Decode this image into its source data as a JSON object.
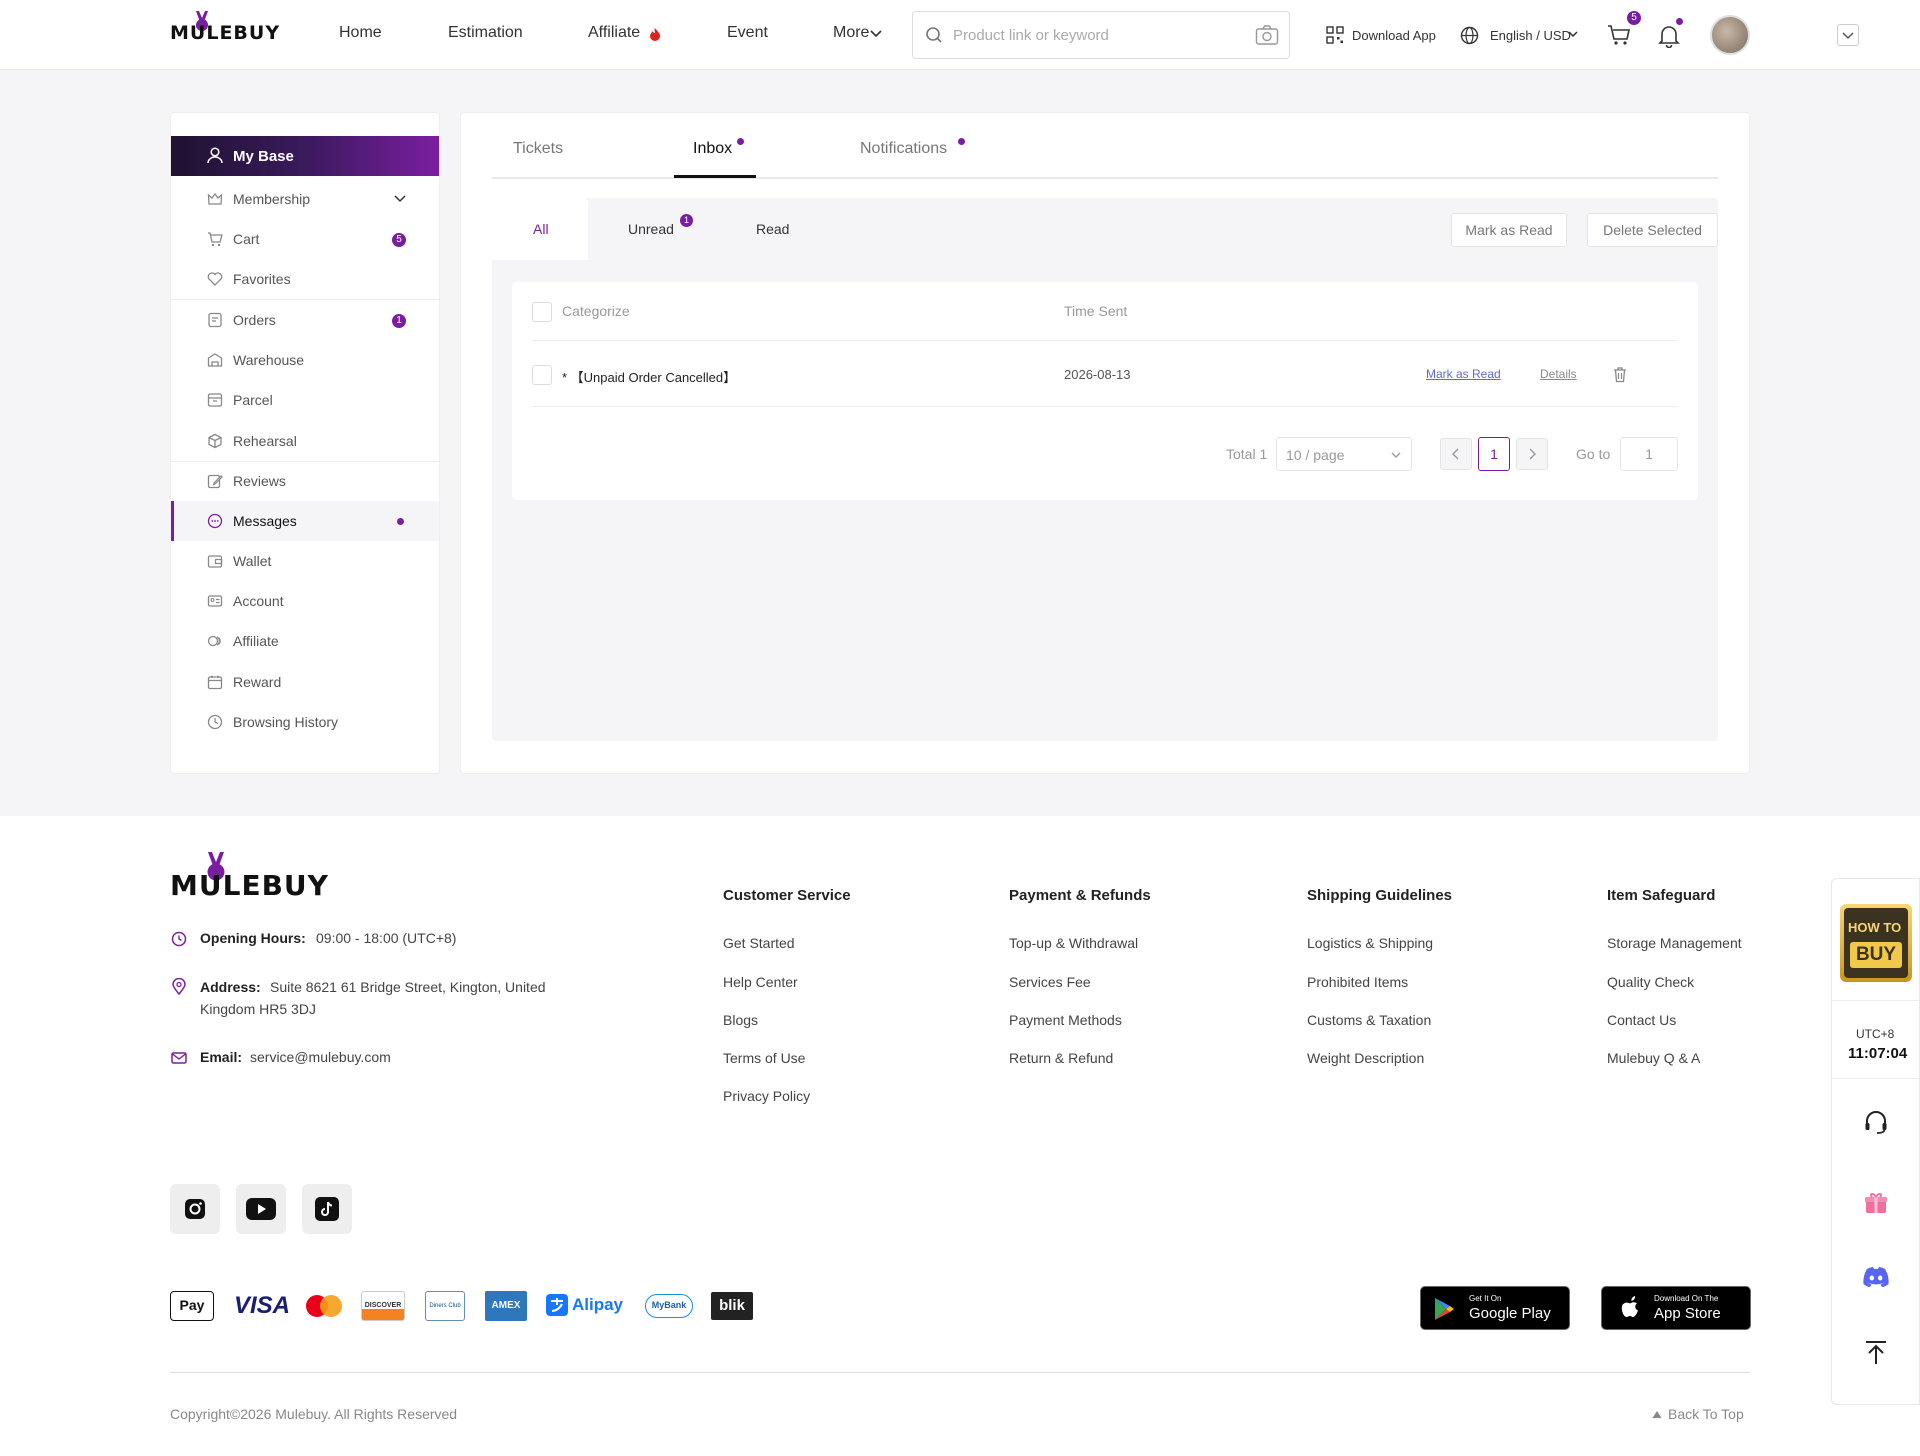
{
  "header": {
    "logo": "MULEBUY",
    "nav": [
      "Home",
      "Estimation",
      "Affiliate",
      "Event",
      "More"
    ],
    "search_placeholder": "Product link or keyword",
    "download_app": "Download App",
    "language": "English / USD",
    "cart_badge": "5"
  },
  "sidebar": {
    "title": "My Base",
    "items": [
      {
        "label": "Membership"
      },
      {
        "label": "Cart",
        "badge": "5"
      },
      {
        "label": "Favorites"
      },
      {
        "label": "Orders",
        "badge": "1"
      },
      {
        "label": "Warehouse"
      },
      {
        "label": "Parcel"
      },
      {
        "label": "Rehearsal"
      },
      {
        "label": "Reviews"
      },
      {
        "label": "Messages"
      },
      {
        "label": "Wallet"
      },
      {
        "label": "Account"
      },
      {
        "label": "Affiliate"
      },
      {
        "label": "Reward"
      },
      {
        "label": "Browsing History"
      }
    ]
  },
  "tabs": [
    "Tickets",
    "Inbox",
    "Notifications"
  ],
  "subtabs": {
    "all": "All",
    "unread": "Unread",
    "unread_badge": "1",
    "read": "Read"
  },
  "actions": {
    "mark_read": "Mark as Read",
    "delete_selected": "Delete Selected"
  },
  "table": {
    "headers": {
      "categorize": "Categorize",
      "time_sent": "Time Sent"
    },
    "rows": [
      {
        "category": "* 【Unpaid Order Cancelled】",
        "time": "2026-08-13",
        "mark_read": "Mark as Read",
        "details": "Details"
      }
    ]
  },
  "pagination": {
    "total": "Total 1",
    "page_size": "10 / page",
    "current": "1",
    "goto_label": "Go to",
    "goto_value": "1"
  },
  "footer": {
    "logo": "MULEBUY",
    "hours_label": "Opening Hours:",
    "hours": "09:00 - 18:00 (UTC+8)",
    "address_label": "Address:",
    "address_line1": "Suite 8621 61 Bridge Street, Kington, United",
    "address_line2": "Kingdom HR5 3DJ",
    "email_label": "Email:",
    "email": "service@mulebuy.com",
    "columns": [
      {
        "title": "Customer Service",
        "links": [
          "Get Started",
          "Help Center",
          "Blogs",
          "Terms of Use",
          "Privacy Policy"
        ]
      },
      {
        "title": "Payment & Refunds",
        "links": [
          "Top-up & Withdrawal",
          "Services Fee",
          "Payment Methods",
          "Return & Refund"
        ]
      },
      {
        "title": "Shipping Guidelines",
        "links": [
          "Logistics & Shipping",
          "Prohibited Items",
          "Customs & Taxation",
          "Weight Description"
        ]
      },
      {
        "title": "Item Safeguard",
        "links": [
          "Storage Management",
          "Quality Check",
          "Contact Us",
          "Mulebuy Q & A"
        ]
      }
    ],
    "payments": [
      "Pay",
      "VISA",
      "DISCOVER",
      "Diners Club",
      "AMEX",
      "Alipay",
      "MyBank",
      "blik"
    ],
    "google_play_small": "Get It On",
    "google_play": "Google Play",
    "app_store_small": "Download On The",
    "app_store": "App Store",
    "copyright": "Copyright©2026 Mulebuy. All Rights Reserved",
    "back_to_top": "Back To Top"
  },
  "float": {
    "how_to": "HOW TO",
    "buy": "BUY",
    "tz": "UTC+8",
    "time": "11:07:04"
  },
  "colors": {
    "accent": "#7a1ea1",
    "link": "#5b6bd6"
  }
}
